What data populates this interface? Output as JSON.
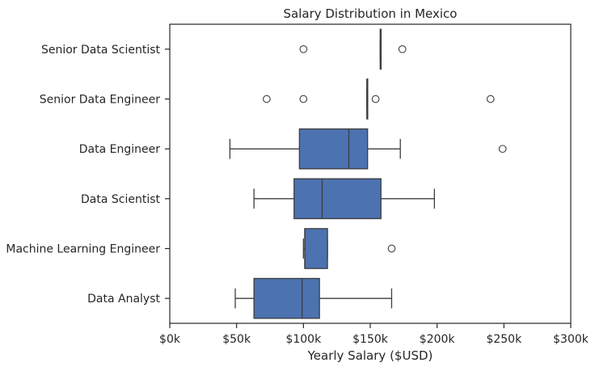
{
  "chart_data": {
    "type": "box",
    "orientation": "horizontal",
    "title": "Salary Distribution in Mexico",
    "xlabel": "Yearly Salary ($USD)",
    "ylabel": "",
    "xlim": [
      0,
      300000
    ],
    "xticks": [
      0,
      50000,
      100000,
      150000,
      200000,
      250000,
      300000
    ],
    "xtick_labels": [
      "$0k",
      "$50k",
      "$100k",
      "$150k",
      "$200k",
      "$250k",
      "$300k"
    ],
    "grid": false,
    "box_color": "#4c72b0",
    "line_color": "#3d3d3d",
    "categories": [
      "Senior Data Scientist",
      "Senior Data Engineer",
      "Data Engineer",
      "Data Scientist",
      "Machine Learning Engineer",
      "Data Analyst"
    ],
    "boxes": [
      {
        "category": "Senior Data Scientist",
        "whisker_low": 157500,
        "q1": 157500,
        "median": 157500,
        "q3": 157500,
        "whisker_high": 157500,
        "outliers": [
          100000,
          174000
        ]
      },
      {
        "category": "Senior Data Engineer",
        "whisker_low": 147500,
        "q1": 147500,
        "median": 147500,
        "q3": 147500,
        "whisker_high": 147500,
        "outliers": [
          72500,
          100000,
          154000,
          240000
        ]
      },
      {
        "category": "Data Engineer",
        "whisker_low": 45000,
        "q1": 97000,
        "median": 134000,
        "q3": 148000,
        "whisker_high": 172500,
        "outliers": [
          249000
        ]
      },
      {
        "category": "Data Scientist",
        "whisker_low": 63000,
        "q1": 93000,
        "median": 114000,
        "q3": 158000,
        "whisker_high": 198000,
        "outliers": []
      },
      {
        "category": "Machine Learning Engineer",
        "whisker_low": 100000,
        "q1": 101000,
        "median": 101000,
        "q3": 118000,
        "whisker_high": 118000,
        "outliers": [
          166000
        ]
      },
      {
        "category": "Data Analyst",
        "whisker_low": 49000,
        "q1": 63000,
        "median": 99000,
        "q3": 112000,
        "whisker_high": 166000,
        "outliers": []
      }
    ]
  }
}
